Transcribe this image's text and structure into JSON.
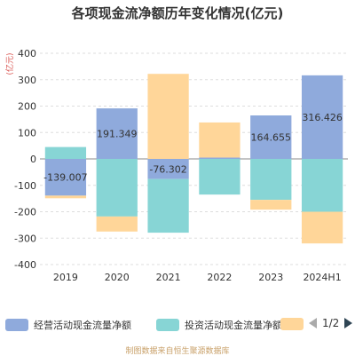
{
  "title": "各项现金流净额历年变化情况(亿元)",
  "source": "制图数据来自恒生聚源数据库",
  "legend_page": "1/2",
  "chart_data": {
    "type": "bar",
    "stacked": true,
    "ylabel": "(亿元)",
    "ylim": [
      -400,
      400
    ],
    "yticks": [
      -400,
      -300,
      -200,
      -100,
      0,
      100,
      200,
      300,
      400
    ],
    "categories": [
      "2019",
      "2020",
      "2021",
      "2022",
      "2023",
      "2024H1"
    ],
    "series": [
      {
        "name": "经营活动现金流量净额",
        "color": "#8faadc",
        "values": [
          -139.007,
          191.349,
          -76.302,
          5,
          164.655,
          316.426
        ]
      },
      {
        "name": "投资活动现金流量净额",
        "color": "#87d5d5",
        "values": [
          45,
          -218,
          -203,
          -135,
          -155,
          -200
        ]
      },
      {
        "name": "",
        "color": "#ffd699",
        "values": [
          -10,
          -57,
          322,
          133,
          -37,
          -120
        ]
      }
    ],
    "data_labels": [
      "-139.007",
      "191.349",
      "-76.302",
      "",
      "164.655",
      "316.426"
    ],
    "grid": true,
    "legend_position": "bottom"
  }
}
